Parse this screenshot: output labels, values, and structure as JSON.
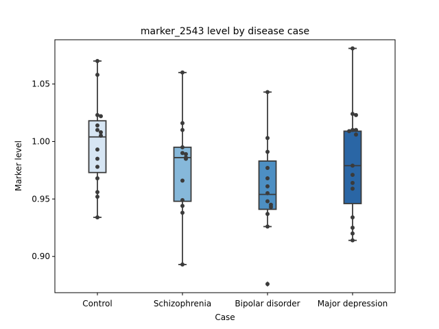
{
  "chart_data": {
    "type": "box",
    "title": "marker_2543 level by disease case",
    "xlabel": "Case",
    "ylabel": "Marker level",
    "ylim": [
      0.8685,
      1.0885
    ],
    "yticks": [
      0.9,
      0.95,
      1.0,
      1.05
    ],
    "ytick_labels": [
      "0.90",
      "0.95",
      "1.00",
      "1.05"
    ],
    "grid": false,
    "legend": "none",
    "categories": [
      "Control",
      "Schizophrenia",
      "Bipolar disorder",
      "Major depression"
    ],
    "box_colors": [
      "#d6e5f3",
      "#86b8da",
      "#4d8fc3",
      "#2a66a5"
    ],
    "boxes": [
      {
        "category": "Control",
        "whislo": 0.934,
        "q1": 0.973,
        "median": 1.004,
        "q3": 1.018,
        "whishi": 1.07,
        "fliers": []
      },
      {
        "category": "Schizophrenia",
        "whislo": 0.893,
        "q1": 0.948,
        "median": 0.986,
        "q3": 0.995,
        "whishi": 1.06,
        "fliers": []
      },
      {
        "category": "Bipolar disorder",
        "whislo": 0.926,
        "q1": 0.941,
        "median": 0.954,
        "q3": 0.983,
        "whishi": 1.043,
        "fliers": [
          0.876
        ]
      },
      {
        "category": "Major depression",
        "whislo": 0.914,
        "q1": 0.946,
        "median": 0.979,
        "q3": 1.009,
        "whishi": 1.081,
        "fliers": []
      }
    ],
    "points": [
      [
        1.07,
        1.058,
        1.023,
        1.022,
        1.014,
        1.01,
        1.008,
        1.005,
        0.993,
        0.985,
        0.978,
        0.968,
        0.956,
        0.952,
        0.934
      ],
      [
        1.06,
        1.016,
        1.01,
        0.995,
        0.99,
        0.989,
        0.986,
        0.985,
        0.966,
        0.949,
        0.944,
        0.938,
        0.893
      ],
      [
        1.043,
        1.003,
        0.991,
        0.977,
        0.968,
        0.961,
        0.955,
        0.948,
        0.945,
        0.943,
        0.937,
        0.926,
        0.876
      ],
      [
        1.081,
        1.024,
        1.023,
        1.01,
        1.01,
        1.009,
        1.006,
        0.979,
        0.971,
        0.964,
        0.959,
        0.934,
        0.925,
        0.92,
        0.914
      ]
    ]
  }
}
